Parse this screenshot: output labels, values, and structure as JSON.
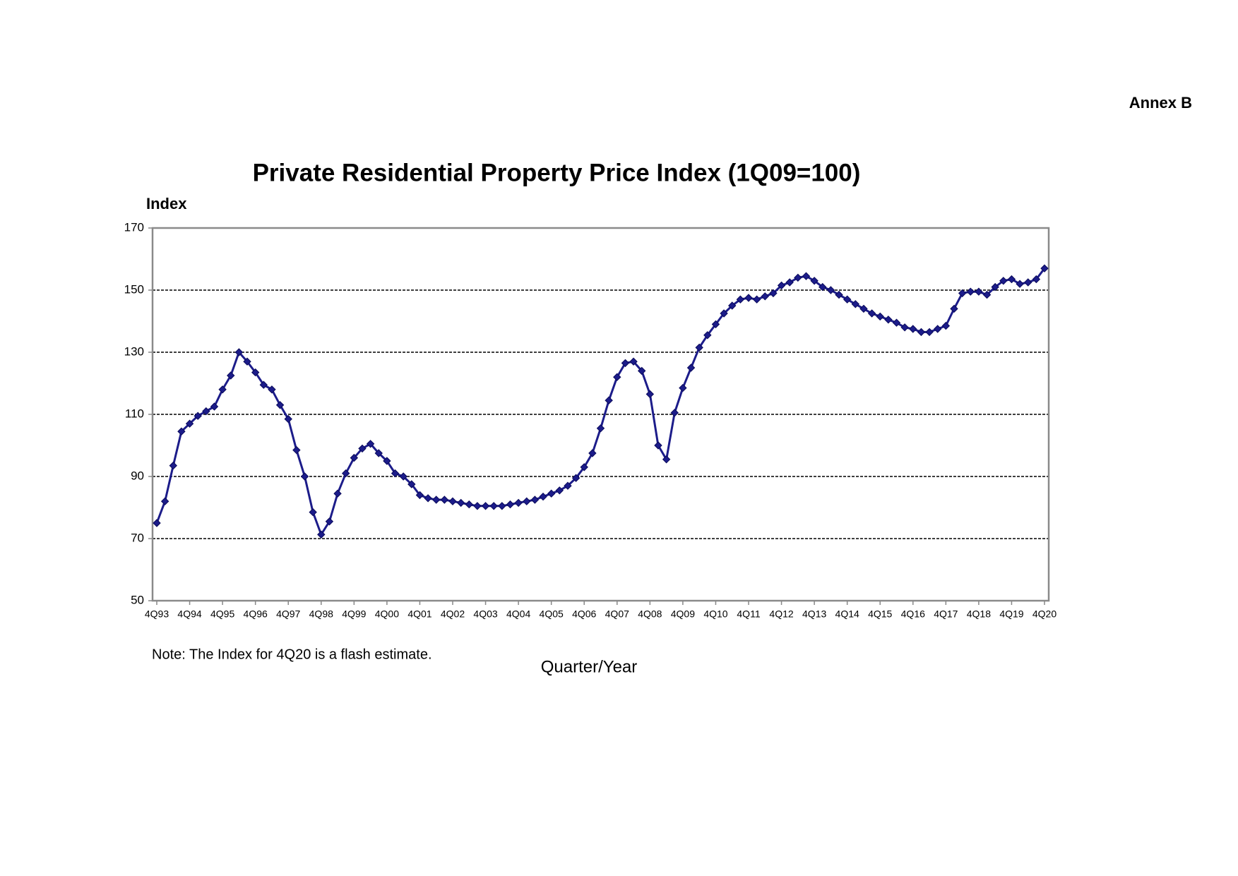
{
  "chart_data": {
    "type": "line",
    "header": "Annex B",
    "title": "Private Residential Property Price Index (1Q09=100)",
    "y_label": "Index",
    "x_label": "Quarter/Year",
    "note": "Note: The Index for 4Q20 is a flash estimate.",
    "categories": [
      "4Q93",
      null,
      null,
      null,
      "4Q94",
      null,
      null,
      null,
      "4Q95",
      null,
      null,
      null,
      "4Q96",
      null,
      null,
      null,
      "4Q97",
      null,
      null,
      null,
      "4Q98",
      null,
      null,
      null,
      "4Q99",
      null,
      null,
      null,
      "4Q00",
      null,
      null,
      null,
      "4Q01",
      null,
      null,
      null,
      "4Q02",
      null,
      null,
      null,
      "4Q03",
      null,
      null,
      null,
      "4Q04",
      null,
      null,
      null,
      "4Q05",
      null,
      null,
      null,
      "4Q06",
      null,
      null,
      null,
      "4Q07",
      null,
      null,
      null,
      "4Q08",
      null,
      null,
      null,
      "4Q09",
      null,
      null,
      null,
      "4Q10",
      null,
      null,
      null,
      "4Q11",
      null,
      null,
      null,
      "4Q12",
      null,
      null,
      null,
      "4Q13",
      null,
      null,
      null,
      "4Q14",
      null,
      null,
      null,
      "4Q15",
      null,
      null,
      null,
      "4Q16",
      null,
      null,
      null,
      "4Q17",
      null,
      null,
      null,
      "4Q18",
      null,
      null,
      null,
      "4Q19",
      null,
      null,
      null,
      "4Q20"
    ],
    "values": [
      75,
      82,
      93.5,
      104.5,
      107,
      109.5,
      111,
      112.5,
      118,
      122.5,
      130,
      127,
      123.5,
      119.5,
      118,
      113,
      108.5,
      98.5,
      90,
      78.5,
      71.3,
      75.5,
      84.5,
      91,
      96,
      99,
      100.5,
      97.5,
      95,
      91,
      90,
      87.5,
      84,
      83,
      82.5,
      82.5,
      82,
      81.5,
      81,
      80.5,
      80.5,
      80.5,
      80.5,
      81,
      81.5,
      82,
      82.5,
      83.5,
      84.5,
      85.5,
      87,
      89.5,
      93,
      97.5,
      105.5,
      114.5,
      122,
      126.5,
      127,
      124,
      116.5,
      100,
      95.5,
      110.5,
      118.5,
      125,
      131.5,
      135.5,
      139,
      142.5,
      145,
      147,
      147.5,
      147,
      148,
      149,
      151.5,
      152.5,
      154,
      154.5,
      153,
      151,
      150,
      148.5,
      147,
      145.5,
      144,
      142.5,
      141.5,
      140.5,
      139.5,
      138,
      137.5,
      136.5,
      136.5,
      137.5,
      138.5,
      144,
      149,
      149.5,
      149.5,
      148.5,
      151,
      153,
      153.5,
      152,
      152.5,
      153.5,
      157
    ],
    "color": "#1c1c8a",
    "ylim": [
      50,
      170
    ],
    "yticks": [
      50,
      70,
      90,
      110,
      130,
      150,
      170
    ],
    "grid": true
  }
}
